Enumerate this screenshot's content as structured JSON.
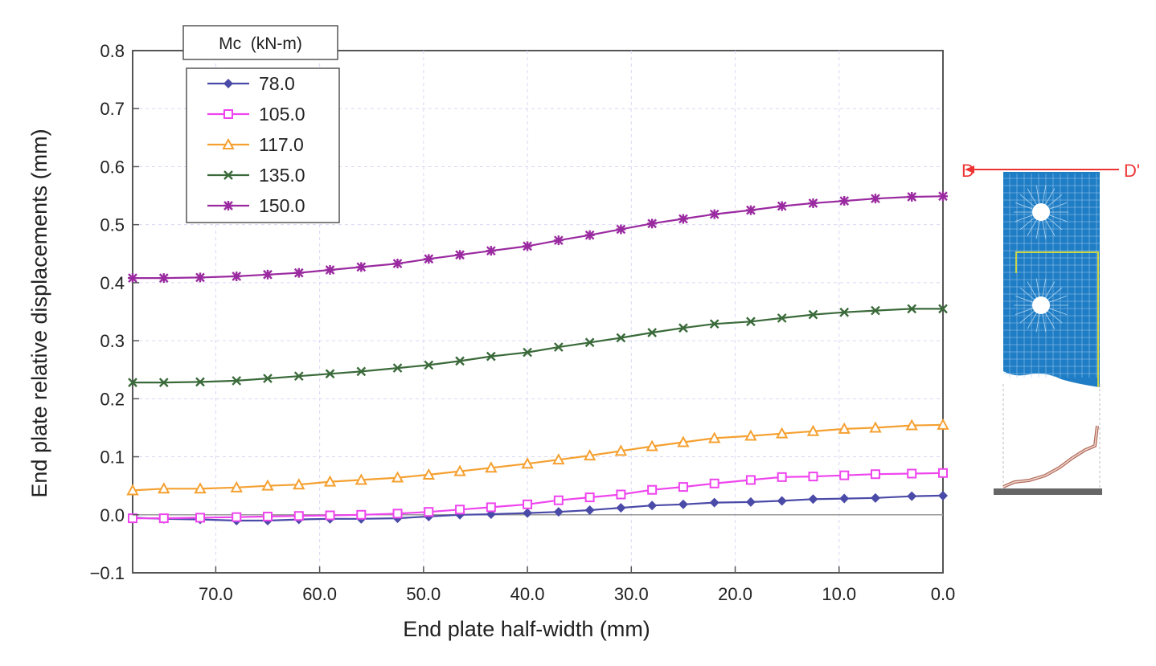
{
  "chart_data": {
    "type": "line",
    "xlabel": "End plate half-width (mm)",
    "ylabel": "End plate relative displacements (mm)",
    "xlim": [
      78,
      0
    ],
    "ylim": [
      -0.1,
      0.8
    ],
    "x_reversed": true,
    "grid": true,
    "x_ticks": [
      "70.0",
      "60.0",
      "50.0",
      "40.0",
      "30.0",
      "20.0",
      "10.0",
      "0.0"
    ],
    "y_ticks": [
      "−0.1",
      "0.0",
      "0.1",
      "0.2",
      "0.3",
      "0.4",
      "0.5",
      "0.6",
      "0.7",
      "0.8"
    ],
    "legend_title": "Mc  (kN-m)",
    "legend_position": "top-left",
    "x": [
      78.0,
      75.0,
      71.5,
      68.0,
      65.0,
      62.0,
      59.0,
      56.0,
      52.5,
      49.5,
      46.5,
      43.5,
      40.0,
      37.0,
      34.0,
      31.0,
      28.0,
      25.0,
      22.0,
      18.5,
      15.5,
      12.5,
      9.5,
      6.5,
      3.0,
      0.0
    ],
    "series": [
      {
        "name": "78.0",
        "color": "#4a4aa8",
        "marker": "diamond",
        "values": [
          -0.005,
          -0.007,
          -0.008,
          -0.01,
          -0.01,
          -0.008,
          -0.007,
          -0.007,
          -0.006,
          -0.003,
          0.0,
          0.001,
          0.003,
          0.005,
          0.008,
          0.012,
          0.016,
          0.018,
          0.021,
          0.022,
          0.024,
          0.027,
          0.028,
          0.029,
          0.032,
          0.033
        ]
      },
      {
        "name": "105.0",
        "color": "#ee44ee",
        "marker": "square",
        "values": [
          -0.006,
          -0.006,
          -0.005,
          -0.004,
          -0.003,
          -0.002,
          -0.001,
          0.0,
          0.002,
          0.005,
          0.009,
          0.013,
          0.018,
          0.025,
          0.03,
          0.035,
          0.043,
          0.048,
          0.054,
          0.06,
          0.065,
          0.066,
          0.068,
          0.07,
          0.071,
          0.072
        ]
      },
      {
        "name": "117.0",
        "color": "#f5a030",
        "marker": "triangle",
        "values": [
          0.042,
          0.045,
          0.045,
          0.047,
          0.05,
          0.052,
          0.057,
          0.06,
          0.064,
          0.069,
          0.075,
          0.081,
          0.088,
          0.095,
          0.102,
          0.11,
          0.118,
          0.125,
          0.132,
          0.136,
          0.14,
          0.144,
          0.148,
          0.15,
          0.154,
          0.155
        ]
      },
      {
        "name": "135.0",
        "color": "#3a6a3a",
        "marker": "x",
        "values": [
          0.228,
          0.228,
          0.229,
          0.231,
          0.235,
          0.239,
          0.243,
          0.247,
          0.253,
          0.258,
          0.265,
          0.273,
          0.28,
          0.289,
          0.297,
          0.305,
          0.314,
          0.322,
          0.329,
          0.333,
          0.339,
          0.345,
          0.349,
          0.352,
          0.355,
          0.355
        ]
      },
      {
        "name": "150.0",
        "color": "#9a2aa0",
        "marker": "star",
        "values": [
          0.408,
          0.408,
          0.409,
          0.411,
          0.414,
          0.417,
          0.422,
          0.427,
          0.433,
          0.441,
          0.448,
          0.455,
          0.463,
          0.473,
          0.482,
          0.492,
          0.502,
          0.51,
          0.518,
          0.525,
          0.532,
          0.537,
          0.541,
          0.545,
          0.548,
          0.549
        ]
      }
    ],
    "inset": {
      "label_left": "D",
      "label_right": "D'"
    }
  },
  "colors": {
    "grid": "#d8d8f4",
    "frame": "#555555",
    "plate_blue": "#1e7dc4",
    "plate_mesh": "#9fc8ee",
    "highlight_green": "#c8d44a",
    "deformed_curve": "#b06a5a",
    "section_line": "#ee3333"
  }
}
